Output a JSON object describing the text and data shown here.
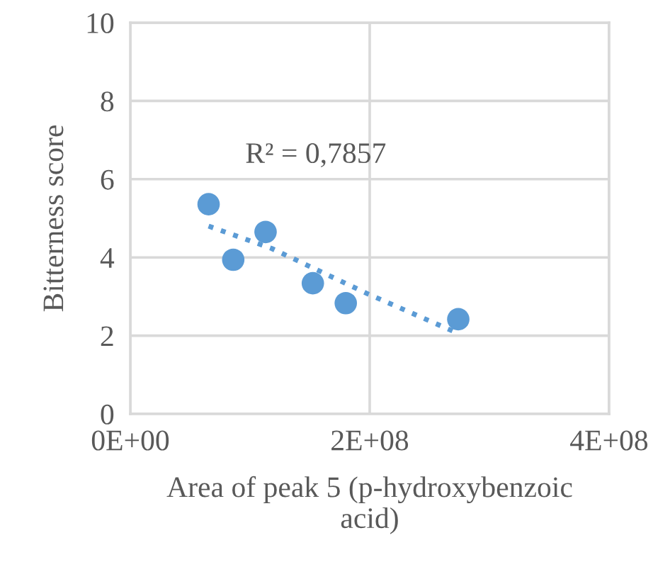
{
  "chart_data": {
    "type": "scatter",
    "xlabel": "Area of peak 5 (p-hydroxybenzoic\nacid)",
    "ylabel": "Bitterness score",
    "annotations": [
      "R² = 0,7857"
    ],
    "series": [
      {
        "color": "#5b9bd5",
        "marker": "circle",
        "x": [
          65400000,
          86000000,
          113000000,
          152500000,
          180000000,
          274000000
        ],
        "values": [
          5.36,
          3.94,
          4.65,
          3.34,
          2.83,
          2.42
        ]
      },
      {
        "type": "line",
        "color": "#5b9bd5",
        "line_style": "dotted",
        "marker": "none",
        "x": [
          65400000,
          118000000,
          199000000,
          270000000
        ],
        "values": [
          4.8,
          4.23,
          3.06,
          2.11
        ]
      }
    ],
    "xlim": [
      0,
      400000000
    ],
    "xticks": [
      {
        "value": 0,
        "label": "0E+00"
      },
      {
        "value": 200000000,
        "label": "2E+08"
      },
      {
        "value": 400000000,
        "label": "4E+08"
      }
    ],
    "ylim": [
      0,
      10
    ],
    "yticks": [
      0,
      2,
      4,
      6,
      8,
      10
    ],
    "grid": true,
    "legend": false
  }
}
